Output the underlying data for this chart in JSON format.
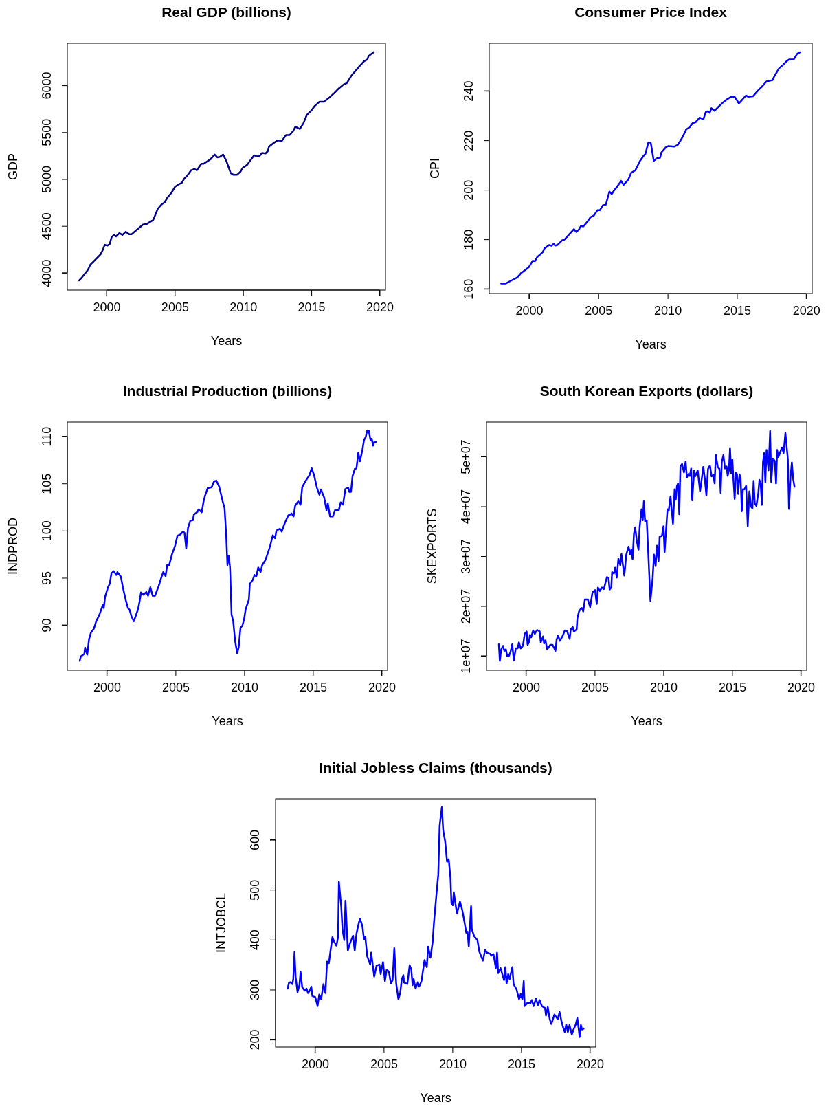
{
  "chart_data": [
    {
      "type": "line",
      "title": "Real GDP (billions)",
      "xlabel": "Years",
      "ylabel": "GDP",
      "xlim": [
        1997.13,
        2020.43
      ],
      "xticks": [
        2000,
        2005,
        2010,
        2015,
        2020
      ],
      "ylim": [
        3816,
        6448
      ],
      "yticks": [
        4000,
        4500,
        5000,
        5500,
        6000
      ],
      "series": [
        {
          "color": "#00008b",
          "x": [
            1998.0,
            1998.2,
            1998.64,
            1998.81,
            1999.09,
            1999.56,
            1999.73,
            1999.87,
            2000.07,
            2000.23,
            2000.37,
            2000.54,
            2000.7,
            2000.94,
            2001.16,
            2001.41,
            2001.66,
            2001.83,
            2002.25,
            2002.67,
            2002.92,
            2003.42,
            2003.59,
            2003.76,
            2004.01,
            2004.26,
            2004.43,
            2004.77,
            2005.02,
            2005.27,
            2005.52,
            2005.69,
            2005.91,
            2006.19,
            2006.44,
            2006.61,
            2006.95,
            2007.11,
            2007.62,
            2007.92,
            2008.12,
            2008.29,
            2008.54,
            2008.79,
            2009.09,
            2009.3,
            2009.55,
            2009.8,
            2009.97,
            2010.3,
            2010.47,
            2010.81,
            2011.06,
            2011.23,
            2011.39,
            2011.64,
            2011.81,
            2011.9,
            2012.23,
            2012.48,
            2012.65,
            2012.82,
            2013.15,
            2013.41,
            2013.66,
            2013.83,
            2014.16,
            2014.41,
            2014.66,
            2015.0,
            2015.25,
            2015.59,
            2015.92,
            2016.34,
            2016.68,
            2017.01,
            2017.35,
            2017.6,
            2017.94,
            2018.27,
            2018.52,
            2018.86,
            2019.11,
            2019.19,
            2019.58
          ],
          "values": [
            3919,
            3951,
            4032,
            4086,
            4127,
            4196,
            4245,
            4299,
            4291,
            4306,
            4379,
            4404,
            4389,
            4424,
            4404,
            4438,
            4411,
            4411,
            4463,
            4514,
            4519,
            4563,
            4624,
            4685,
            4727,
            4752,
            4796,
            4857,
            4918,
            4943,
            4960,
            5004,
            5036,
            5094,
            5107,
            5094,
            5163,
            5163,
            5212,
            5261,
            5231,
            5236,
            5261,
            5187,
            5065,
            5045,
            5045,
            5077,
            5119,
            5151,
            5187,
            5253,
            5241,
            5249,
            5278,
            5273,
            5297,
            5346,
            5383,
            5408,
            5412,
            5403,
            5469,
            5469,
            5510,
            5559,
            5535,
            5591,
            5682,
            5731,
            5780,
            5824,
            5824,
            5873,
            5917,
            5966,
            6007,
            6024,
            6105,
            6159,
            6203,
            6257,
            6277,
            6313,
            6355
          ]
        }
      ]
    },
    {
      "type": "line",
      "title": "Consumer Price Index",
      "xlabel": "Years",
      "ylabel": "CPI",
      "xlim": [
        1997.13,
        2020.43
      ],
      "xticks": [
        2000,
        2005,
        2010,
        2015,
        2020
      ],
      "ylim": [
        158.1,
        259.2
      ],
      "yticks": [
        160,
        180,
        200,
        220,
        240
      ],
      "series": [
        {
          "color": "#0000ff",
          "x": [
            1997.99,
            1998.3,
            1998.64,
            1999.15,
            1999.4,
            2000.0,
            2000.26,
            2000.43,
            2000.6,
            2000.99,
            2001.11,
            2001.45,
            2001.62,
            2001.79,
            2001.88,
            2002.05,
            2002.39,
            2002.56,
            2002.9,
            2003.24,
            2003.41,
            2003.58,
            2003.75,
            2003.92,
            2004.26,
            2004.43,
            2004.69,
            2004.94,
            2005.12,
            2005.32,
            2005.54,
            2005.8,
            2005.97,
            2006.14,
            2006.31,
            2006.65,
            2006.82,
            2007.16,
            2007.37,
            2007.67,
            2008.01,
            2008.27,
            2008.39,
            2008.61,
            2008.78,
            2009.0,
            2009.21,
            2009.46,
            2009.55,
            2009.89,
            2010.06,
            2010.49,
            2010.74,
            2011.08,
            2011.34,
            2011.59,
            2011.8,
            2012.02,
            2012.31,
            2012.58,
            2012.75,
            2012.87,
            2013.04,
            2013.16,
            2013.38,
            2013.67,
            2013.98,
            2014.24,
            2014.58,
            2014.83,
            2015.0,
            2015.14,
            2015.35,
            2015.65,
            2015.82,
            2016.16,
            2016.5,
            2016.79,
            2017.13,
            2017.56,
            2017.73,
            2018.04,
            2018.33,
            2018.59,
            2018.76,
            2019.1,
            2019.35,
            2019.57
          ],
          "values": [
            162.1,
            162.1,
            163.1,
            164.6,
            166.2,
            168.8,
            171.3,
            171.2,
            172.9,
            174.8,
            176.3,
            177.7,
            177.4,
            178.2,
            177.5,
            177.7,
            179.6,
            179.9,
            182.0,
            184.1,
            183.0,
            183.8,
            185.4,
            185.2,
            187.5,
            188.9,
            189.7,
            191.8,
            191.8,
            193.7,
            194.0,
            199.3,
            198.3,
            199.8,
            200.9,
            203.6,
            202.0,
            204.1,
            206.9,
            207.9,
            211.7,
            213.8,
            214.4,
            219.1,
            219.1,
            211.7,
            212.7,
            213.0,
            215.1,
            217.3,
            217.7,
            217.5,
            218.2,
            221.3,
            224.4,
            225.3,
            226.9,
            227.3,
            229.2,
            228.5,
            231.4,
            231.7,
            231.1,
            233.0,
            231.9,
            233.6,
            235.2,
            236.4,
            237.6,
            237.6,
            236.2,
            234.9,
            236.2,
            238.1,
            237.6,
            237.8,
            240.0,
            241.6,
            243.8,
            244.3,
            246.2,
            249.1,
            250.5,
            252.0,
            252.7,
            252.7,
            255.0,
            255.6
          ]
        }
      ]
    },
    {
      "type": "line",
      "title": "Industrial Production (billions)",
      "xlabel": "Years",
      "ylabel": "INDPROD",
      "xlim": [
        1997.13,
        2020.43
      ],
      "xticks": [
        2000,
        2005,
        2010,
        2015,
        2020
      ],
      "ylim": [
        85.2,
        111.5
      ],
      "yticks": [
        90,
        95,
        100,
        105,
        110
      ],
      "series": [
        {
          "color": "#0000ff",
          "x": [
            1998.03,
            1998.11,
            1998.37,
            1998.42,
            1998.58,
            1998.71,
            1998.85,
            1999.06,
            1999.23,
            1999.4,
            1999.49,
            1999.71,
            1999.78,
            1999.88,
            2000.09,
            2000.22,
            2000.34,
            2000.51,
            2000.69,
            2000.77,
            2001.03,
            2001.17,
            2001.37,
            2001.54,
            2001.66,
            2001.8,
            2001.97,
            2002.14,
            2002.28,
            2002.4,
            2002.49,
            2002.66,
            2002.88,
            2003.0,
            2003.17,
            2003.34,
            2003.51,
            2003.77,
            2003.94,
            2004.11,
            2004.28,
            2004.4,
            2004.54,
            2004.75,
            2004.97,
            2005.14,
            2005.36,
            2005.54,
            2005.66,
            2005.78,
            2005.91,
            2006.08,
            2006.26,
            2006.34,
            2006.6,
            2006.68,
            2006.91,
            2007.03,
            2007.15,
            2007.34,
            2007.63,
            2007.8,
            2007.97,
            2008.18,
            2008.45,
            2008.57,
            2008.69,
            2008.78,
            2008.86,
            2008.97,
            2009.08,
            2009.2,
            2009.34,
            2009.49,
            2009.6,
            2009.73,
            2009.86,
            2009.99,
            2010.11,
            2010.34,
            2010.41,
            2010.63,
            2010.75,
            2010.88,
            2011.02,
            2011.19,
            2011.31,
            2011.53,
            2011.74,
            2011.88,
            2012.08,
            2012.25,
            2012.34,
            2012.6,
            2012.73,
            2012.94,
            2013.2,
            2013.45,
            2013.59,
            2013.71,
            2013.93,
            2014.1,
            2014.22,
            2014.48,
            2014.74,
            2014.91,
            2015.08,
            2015.3,
            2015.47,
            2015.59,
            2015.82,
            2015.99,
            2016.08,
            2016.25,
            2016.45,
            2016.62,
            2016.88,
            2017.02,
            2017.19,
            2017.36,
            2017.57,
            2017.65,
            2017.77,
            2017.88,
            2018.05,
            2018.17,
            2018.3,
            2018.42,
            2018.6,
            2018.72,
            2018.85,
            2018.94,
            2019.06,
            2019.19,
            2019.28,
            2019.37,
            2019.45,
            2019.57
          ],
          "values": [
            86.2,
            86.65,
            86.95,
            87.6,
            86.85,
            88.5,
            89.2,
            89.6,
            90.4,
            90.9,
            91.2,
            92.1,
            91.8,
            93.0,
            94.0,
            94.4,
            95.5,
            95.7,
            95.3,
            95.6,
            95.1,
            94.0,
            92.7,
            91.8,
            91.6,
            90.9,
            90.4,
            91.1,
            91.7,
            92.6,
            93.45,
            93.2,
            93.5,
            93.1,
            94.0,
            93.1,
            93.1,
            94.1,
            94.9,
            95.6,
            95.2,
            96.4,
            96.35,
            97.5,
            98.4,
            99.45,
            99.6,
            99.9,
            99.75,
            98.1,
            100.3,
            101.05,
            101.1,
            101.7,
            102.0,
            102.25,
            101.95,
            103.0,
            103.7,
            104.5,
            104.6,
            105.2,
            105.3,
            104.65,
            103.0,
            102.4,
            99.5,
            96.35,
            97.35,
            96.1,
            91.1,
            90.4,
            88.3,
            87.0,
            87.65,
            89.7,
            89.9,
            90.6,
            91.7,
            92.7,
            94.35,
            94.8,
            95.3,
            95.15,
            96.1,
            95.6,
            96.35,
            96.85,
            97.7,
            98.35,
            99.5,
            99.2,
            100.0,
            100.2,
            99.9,
            100.75,
            101.6,
            101.8,
            101.5,
            102.65,
            103.1,
            102.75,
            104.6,
            105.3,
            105.85,
            106.6,
            105.9,
            104.5,
            103.8,
            104.35,
            103.5,
            102.15,
            102.9,
            101.5,
            101.5,
            102.2,
            102.15,
            103.0,
            102.75,
            104.4,
            104.55,
            104.1,
            104.1,
            105.75,
            106.55,
            106.6,
            108.25,
            107.35,
            108.55,
            109.6,
            109.95,
            110.55,
            110.6,
            109.6,
            109.75,
            109.0,
            109.35,
            109.4
          ]
        }
      ]
    },
    {
      "type": "line",
      "title": "South Korean Exports (dollars)",
      "xlabel": "Years",
      "ylabel": "SKEXPORTS",
      "xlim": [
        1997.13,
        2020.43
      ],
      "xticks": [
        2000,
        2005,
        2010,
        2015,
        2020
      ],
      "ylim": [
        7100000.0,
        56900000.0
      ],
      "yticks": [
        {
          "value": 10000000.0,
          "label": "1e+07"
        },
        {
          "value": 20000000.0,
          "label": "2e+07"
        },
        {
          "value": 30000000.0,
          "label": "3e+07"
        },
        {
          "value": 40000000.0,
          "label": "4e+07"
        },
        {
          "value": 50000000.0,
          "label": "5e+07"
        }
      ],
      "series": [
        {
          "color": "#0000ff",
          "x": [
            1998.03,
            1998.1,
            1998.2,
            1998.33,
            1998.43,
            1998.54,
            1998.64,
            1998.75,
            1998.88,
            1999.0,
            1999.12,
            1999.26,
            1999.4,
            1999.49,
            1999.62,
            1999.78,
            1999.91,
            2000.05,
            2000.12,
            2000.22,
            2000.29,
            2000.38,
            2000.52,
            2000.64,
            2000.81,
            2001.0,
            2001.08,
            2001.25,
            2001.32,
            2001.42,
            2001.55,
            2001.77,
            2001.94,
            2002.15,
            2002.23,
            2002.35,
            2002.46,
            2002.66,
            2002.83,
            2003.0,
            2003.18,
            2003.26,
            2003.4,
            2003.49,
            2003.69,
            2003.74,
            2003.86,
            2003.98,
            2004.07,
            2004.17,
            2004.29,
            2004.5,
            2004.67,
            2004.84,
            2005.03,
            2005.15,
            2005.24,
            2005.37,
            2005.53,
            2005.67,
            2005.89,
            2006.01,
            2006.09,
            2006.21,
            2006.27,
            2006.4,
            2006.49,
            2006.61,
            2006.73,
            2006.87,
            2006.95,
            2007.16,
            2007.3,
            2007.47,
            2007.59,
            2007.67,
            2007.76,
            2007.86,
            2007.95,
            2008.07,
            2008.19,
            2008.28,
            2008.41,
            2008.5,
            2008.58,
            2008.67,
            2008.79,
            2008.93,
            2009.06,
            2009.22,
            2009.32,
            2009.44,
            2009.53,
            2009.65,
            2009.73,
            2009.9,
            2010.01,
            2010.09,
            2010.3,
            2010.39,
            2010.52,
            2010.7,
            2010.82,
            2010.9,
            2010.99,
            2011.07,
            2011.16,
            2011.24,
            2011.36,
            2011.5,
            2011.62,
            2011.71,
            2011.84,
            2011.93,
            2012.02,
            2012.1,
            2012.24,
            2012.31,
            2012.5,
            2012.67,
            2012.91,
            2013.01,
            2013.13,
            2013.25,
            2013.39,
            2013.51,
            2013.64,
            2013.73,
            2013.82,
            2013.96,
            2014.08,
            2014.17,
            2014.25,
            2014.37,
            2014.48,
            2014.6,
            2014.68,
            2014.77,
            2014.85,
            2014.94,
            2015.02,
            2015.11,
            2015.19,
            2015.28,
            2015.36,
            2015.45,
            2015.54,
            2015.62,
            2015.71,
            2015.79,
            2015.91,
            2016.02,
            2016.14,
            2016.26,
            2016.39,
            2016.48,
            2016.57,
            2016.65,
            2016.77,
            2016.91,
            2016.99,
            2017.08,
            2017.17,
            2017.25,
            2017.34,
            2017.42,
            2017.51,
            2017.65,
            2017.77,
            2017.85,
            2017.97,
            2018.11,
            2018.2,
            2018.28,
            2018.37,
            2018.63,
            2018.75,
            2018.88,
            2019.06,
            2019.14,
            2019.25,
            2019.35,
            2019.44,
            2019.54
          ],
          "values": [
            12300000.0,
            9000000.0,
            11300000.0,
            12000000.0,
            11000000.0,
            11300000.0,
            9900000.0,
            9900000.0,
            10800000.0,
            12300000.0,
            9100000.0,
            11500000.0,
            11500000.0,
            12700000.0,
            11500000.0,
            12000000.0,
            14400000.0,
            14900000.0,
            12200000.0,
            12700000.0,
            14200000.0,
            13700000.0,
            15100000.0,
            14400000.0,
            15200000.0,
            14900000.0,
            12700000.0,
            13900000.0,
            12500000.0,
            13100000.0,
            11300000.0,
            12200000.0,
            12200000.0,
            11000000.0,
            13200000.0,
            14100000.0,
            13000000.0,
            13900000.0,
            15100000.0,
            14900000.0,
            13400000.0,
            15300000.0,
            15800000.0,
            14900000.0,
            15300000.0,
            17500000.0,
            18900000.0,
            19400000.0,
            19600000.0,
            18900000.0,
            21300000.0,
            21300000.0,
            19800000.0,
            22700000.0,
            23200000.0,
            20400000.0,
            23700000.0,
            23000000.0,
            23700000.0,
            23400000.0,
            25800000.0,
            25600000.0,
            23300000.0,
            23700000.0,
            26800000.0,
            26500000.0,
            27700000.0,
            25700000.0,
            29500000.0,
            28200000.0,
            30400000.0,
            26100000.0,
            30300000.0,
            31900000.0,
            30300000.0,
            31300000.0,
            29400000.0,
            34500000.0,
            35800000.0,
            33000000.0,
            31300000.0,
            36000000.0,
            39400000.0,
            37200000.0,
            41000000.0,
            37000000.0,
            37200000.0,
            28900000.0,
            21000000.0,
            25600000.0,
            30300000.0,
            28000000.0,
            32100000.0,
            29000000.0,
            33900000.0,
            34100000.0,
            36000000.0,
            30800000.0,
            39400000.0,
            39100000.0,
            42000000.0,
            36500000.0,
            43400000.0,
            41300000.0,
            44100000.0,
            44600000.0,
            38400000.0,
            48000000.0,
            48500000.0,
            46800000.0,
            49000000.0,
            45800000.0,
            46500000.0,
            46100000.0,
            47600000.0,
            41200000.0,
            47200000.0,
            46000000.0,
            47200000.0,
            43000000.0,
            47900000.0,
            45700000.0,
            42200000.0,
            47500000.0,
            48200000.0,
            46000000.0,
            46300000.0,
            44600000.0,
            50300000.0,
            47900000.0,
            47500000.0,
            42700000.0,
            48900000.0,
            50300000.0,
            47600000.0,
            48000000.0,
            46100000.0,
            47200000.0,
            51700000.0,
            46600000.0,
            49400000.0,
            44900000.0,
            41500000.0,
            46800000.0,
            46400000.0,
            42500000.0,
            46400000.0,
            45800000.0,
            39000000.0,
            43400000.0,
            43400000.0,
            44100000.0,
            36000000.0,
            43000000.0,
            39900000.0,
            39600000.0,
            45100000.0,
            40600000.0,
            40100000.0,
            42700000.0,
            45300000.0,
            44600000.0,
            40300000.0,
            48900000.0,
            50700000.0,
            44900000.0,
            51300000.0,
            47200000.0,
            55100000.0,
            44900000.0,
            49600000.0,
            49100000.0,
            44600000.0,
            51300000.0,
            49900000.0,
            51800000.0,
            50700000.0,
            54700000.0,
            49400000.0,
            39500000.0,
            45800000.0,
            48800000.0,
            45600000.0,
            43900000.0
          ]
        }
      ]
    },
    {
      "type": "line",
      "title": "Initial Jobless Claims (thousands)",
      "xlabel": "Years",
      "ylabel": "INTJOBCL",
      "xlim": [
        1997.13,
        2020.43
      ],
      "xticks": [
        2000,
        2005,
        2010,
        2015,
        2020
      ],
      "ylim": [
        185,
        682
      ],
      "yticks": [
        200,
        300,
        400,
        500,
        600
      ],
      "series": [
        {
          "color": "#0000ff",
          "x": [
            1998.01,
            1998.1,
            1998.21,
            1998.35,
            1998.42,
            1998.51,
            1998.59,
            1998.73,
            1998.87,
            1998.95,
            1999.07,
            1999.24,
            1999.38,
            1999.5,
            1999.62,
            1999.73,
            1999.81,
            2000.02,
            2000.19,
            2000.31,
            2000.45,
            2000.62,
            2000.76,
            2000.88,
            2001.01,
            2001.17,
            2001.27,
            2001.39,
            2001.56,
            2001.68,
            2001.74,
            2001.91,
            2002.0,
            2002.13,
            2002.22,
            2002.39,
            2002.51,
            2002.68,
            2002.77,
            2002.89,
            2003.02,
            2003.2,
            2003.28,
            2003.45,
            2003.57,
            2003.66,
            2003.8,
            2004.02,
            2004.09,
            2004.31,
            2004.48,
            2004.69,
            2004.78,
            2004.95,
            2005.09,
            2005.22,
            2005.38,
            2005.52,
            2005.65,
            2005.77,
            2005.91,
            2006.07,
            2006.2,
            2006.32,
            2006.43,
            2006.49,
            2006.72,
            2006.89,
            2007.01,
            2007.1,
            2007.18,
            2007.32,
            2007.49,
            2007.58,
            2007.75,
            2007.97,
            2008.14,
            2008.23,
            2008.4,
            2008.56,
            2008.66,
            2008.83,
            2008.97,
            2009.07,
            2009.23,
            2009.33,
            2009.47,
            2009.61,
            2009.73,
            2009.86,
            2009.93,
            2010.03,
            2010.1,
            2010.33,
            2010.55,
            2010.72,
            2010.89,
            2011.01,
            2011.1,
            2011.19,
            2011.36,
            2011.41,
            2011.58,
            2011.82,
            2011.96,
            2012.22,
            2012.39,
            2012.51,
            2012.73,
            2012.85,
            2012.99,
            2013.16,
            2013.25,
            2013.33,
            2013.5,
            2013.76,
            2013.85,
            2013.94,
            2014.06,
            2014.16,
            2014.36,
            2014.45,
            2014.67,
            2014.85,
            2014.97,
            2015.09,
            2015.19,
            2015.26,
            2015.48,
            2015.66,
            2015.78,
            2015.91,
            2016.08,
            2016.22,
            2016.34,
            2016.51,
            2016.74,
            2016.81,
            2016.94,
            2017.08,
            2017.2,
            2017.42,
            2017.66,
            2017.8,
            2017.94,
            2018.06,
            2018.18,
            2018.28,
            2018.4,
            2018.52,
            2018.69,
            2018.8,
            2018.97,
            2019.09,
            2019.26,
            2019.35,
            2019.43,
            2019.55
          ],
          "values": [
            302,
            313,
            315,
            311,
            321,
            375,
            326,
            295,
            309,
            336,
            305,
            298,
            302,
            293,
            298,
            306,
            287,
            285,
            267,
            290,
            281,
            311,
            293,
            356,
            353,
            386,
            405,
            396,
            388,
            405,
            516,
            466,
            421,
            399,
            478,
            378,
            390,
            402,
            408,
            378,
            412,
            435,
            442,
            427,
            400,
            406,
            367,
            350,
            374,
            326,
            348,
            350,
            331,
            355,
            317,
            340,
            336,
            312,
            319,
            383,
            312,
            281,
            293,
            321,
            329,
            314,
            311,
            349,
            340,
            309,
            321,
            302,
            315,
            306,
            317,
            359,
            345,
            386,
            364,
            395,
            435,
            488,
            530,
            628,
            665,
            619,
            597,
            556,
            561,
            523,
            473,
            469,
            495,
            452,
            476,
            459,
            433,
            414,
            416,
            386,
            467,
            421,
            407,
            399,
            376,
            358,
            380,
            374,
            372,
            368,
            371,
            343,
            374,
            333,
            343,
            319,
            345,
            312,
            331,
            321,
            345,
            311,
            300,
            281,
            291,
            281,
            317,
            267,
            274,
            272,
            279,
            267,
            282,
            269,
            279,
            267,
            263,
            248,
            265,
            241,
            231,
            250,
            241,
            255,
            236,
            224,
            215,
            230,
            215,
            229,
            210,
            219,
            230,
            243,
            205,
            229,
            220,
            222
          ]
        }
      ]
    }
  ]
}
